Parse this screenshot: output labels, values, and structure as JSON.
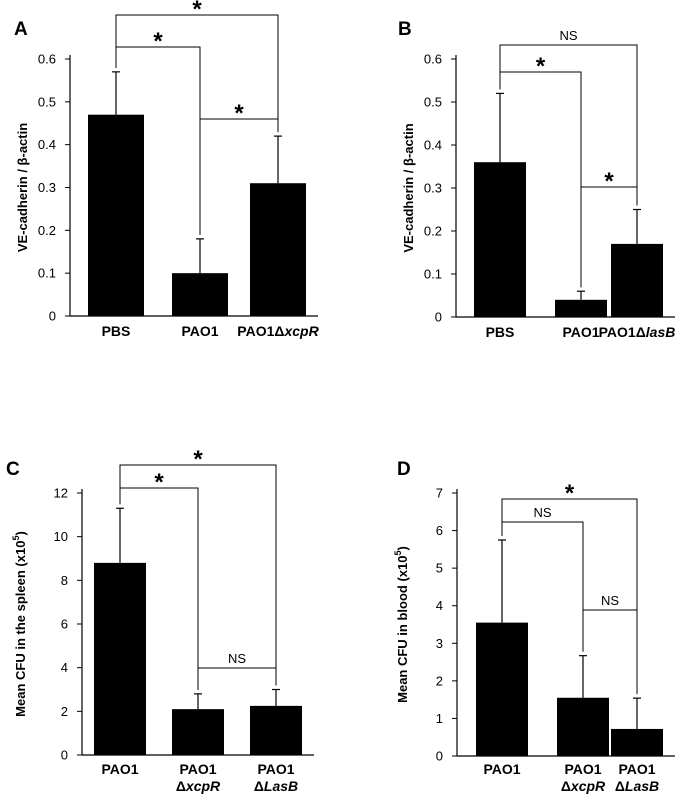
{
  "chart_data": [
    {
      "type": "bar",
      "panel": "A",
      "ylabel": "VE-cadherin / β-actin",
      "ylim": [
        0,
        0.6
      ],
      "yticks": [
        "0",
        "0.1",
        "0.2",
        "0.3",
        "0.4",
        "0.5",
        "0.6"
      ],
      "categories": [
        {
          "line1": "PBS",
          "line2": ""
        },
        {
          "line1": "PAO1",
          "line2": ""
        },
        {
          "line1": "PAO1Δ",
          "line1_italic": "xcpR",
          "line2": ""
        }
      ],
      "values": [
        0.47,
        0.1,
        0.31
      ],
      "errors": [
        0.1,
        0.08,
        0.11
      ],
      "bar_color": "#000000",
      "significance": [
        {
          "from": 0,
          "to": 1,
          "label": "*"
        },
        {
          "from": 0,
          "to": 2,
          "label": "*"
        },
        {
          "from": 1,
          "to": 2,
          "label": "*"
        }
      ]
    },
    {
      "type": "bar",
      "panel": "B",
      "ylabel": "VE-cadherin / β-actin",
      "ylim": [
        0,
        0.6
      ],
      "yticks": [
        "0",
        "0.1",
        "0.2",
        "0.3",
        "0.4",
        "0.5",
        "0.6"
      ],
      "categories": [
        {
          "line1": "PBS",
          "line2": ""
        },
        {
          "line1": "PAO1",
          "line2": ""
        },
        {
          "line1": "PAO1Δ",
          "line1_italic": "lasB",
          "line2": ""
        }
      ],
      "values": [
        0.36,
        0.04,
        0.17
      ],
      "errors": [
        0.16,
        0.02,
        0.08
      ],
      "bar_color": "#000000",
      "significance": [
        {
          "from": 0,
          "to": 1,
          "label": "*"
        },
        {
          "from": 0,
          "to": 2,
          "label": "NS"
        },
        {
          "from": 1,
          "to": 2,
          "label": "*"
        }
      ]
    },
    {
      "type": "bar",
      "panel": "C",
      "ylabel": "Mean CFU in the spleen (x10",
      "ylabel_sup": "5",
      "ylabel_end": ")",
      "ylim": [
        0,
        12
      ],
      "yticks": [
        "0",
        "2",
        "4",
        "6",
        "8",
        "10",
        "12"
      ],
      "categories": [
        {
          "line1": "PAO1",
          "line2": ""
        },
        {
          "line1": "PAO1",
          "line2": "Δ",
          "line2_italic": "xcpR"
        },
        {
          "line1": "PAO1",
          "line2": "Δ",
          "line2_italic": "LasB"
        }
      ],
      "values": [
        8.8,
        2.1,
        2.25
      ],
      "errors": [
        2.5,
        0.7,
        0.75
      ],
      "bar_color": "#000000",
      "significance": [
        {
          "from": 0,
          "to": 1,
          "label": "*"
        },
        {
          "from": 0,
          "to": 2,
          "label": "*"
        },
        {
          "from": 1,
          "to": 2,
          "label": "NS"
        }
      ]
    },
    {
      "type": "bar",
      "panel": "D",
      "ylabel": "Mean CFU in blood (x10",
      "ylabel_sup": "5",
      "ylabel_end": ")",
      "ylim": [
        0,
        7
      ],
      "yticks": [
        "0",
        "1",
        "2",
        "3",
        "4",
        "5",
        "6",
        "7"
      ],
      "categories": [
        {
          "line1": "PAO1",
          "line2": ""
        },
        {
          "line1": "PAO1",
          "line2": "Δ",
          "line2_italic": "xcpR"
        },
        {
          "line1": "PAO1",
          "line2": "Δ",
          "line2_italic": "LasB"
        }
      ],
      "values": [
        3.55,
        1.55,
        0.72
      ],
      "errors": [
        2.2,
        1.12,
        0.82
      ],
      "bar_color": "#000000",
      "significance": [
        {
          "from": 0,
          "to": 1,
          "label": "NS"
        },
        {
          "from": 0,
          "to": 2,
          "label": "*"
        },
        {
          "from": 1,
          "to": 2,
          "label": "NS"
        }
      ]
    }
  ]
}
